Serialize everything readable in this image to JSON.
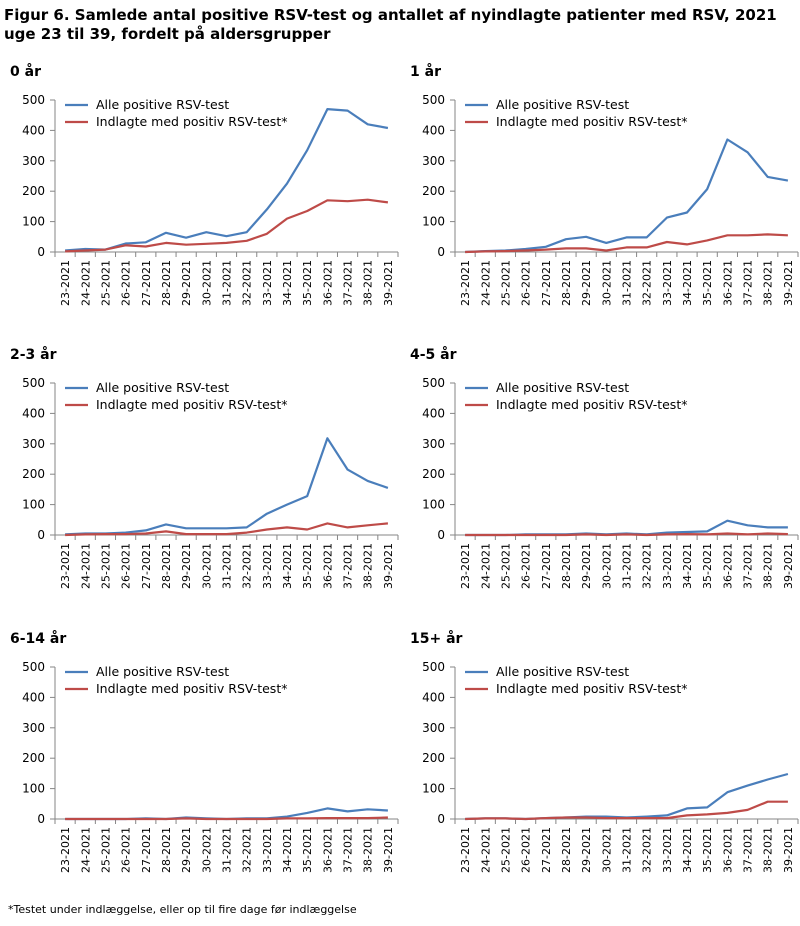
{
  "figure": {
    "title": "Figur 6. Samlede antal positive  RSV-test  og antallet af nyindlagte patienter med RSV, 2021 uge 23 til 39, fordelt på aldersgrupper",
    "footnote": "*Testet under indlæggelse, eller op til fire dage før indlæggelse"
  },
  "colors": {
    "positive": "#4a7ebb",
    "admitted": "#be4b48",
    "axis": "#868686"
  },
  "chart_data": [
    {
      "type": "line",
      "title": "0 år",
      "categories": [
        "23-2021",
        "24-2021",
        "25-2021",
        "26-2021",
        "27-2021",
        "28-2021",
        "29-2021",
        "30-2021",
        "31-2021",
        "32-2021",
        "33-2021",
        "34-2021",
        "35-2021",
        "36-2021",
        "37-2021",
        "38-2021",
        "39-2021"
      ],
      "ylim": [
        0,
        500
      ],
      "yticks": [
        0,
        100,
        200,
        300,
        400,
        500
      ],
      "legend_position": "top-left",
      "series": [
        {
          "name": "Alle positive RSV-test",
          "values": [
            5,
            10,
            8,
            28,
            32,
            63,
            47,
            65,
            52,
            65,
            140,
            225,
            335,
            470,
            465,
            420,
            408
          ]
        },
        {
          "name": "Indlagte med positiv RSV-test*",
          "values": [
            2,
            5,
            8,
            22,
            18,
            30,
            24,
            27,
            30,
            37,
            60,
            110,
            135,
            170,
            167,
            172,
            163
          ]
        }
      ]
    },
    {
      "type": "line",
      "title": "1 år",
      "categories": [
        "23-2021",
        "24-2021",
        "25-2021",
        "26-2021",
        "27-2021",
        "28-2021",
        "29-2021",
        "30-2021",
        "31-2021",
        "32-2021",
        "33-2021",
        "34-2021",
        "35-2021",
        "36-2021",
        "37-2021",
        "38-2021",
        "39-2021"
      ],
      "ylim": [
        0,
        500
      ],
      "yticks": [
        0,
        100,
        200,
        300,
        400,
        500
      ],
      "legend_position": "top-left",
      "series": [
        {
          "name": "Alle positive RSV-test",
          "values": [
            0,
            3,
            5,
            10,
            17,
            42,
            50,
            30,
            48,
            48,
            113,
            130,
            207,
            370,
            328,
            247,
            235
          ]
        },
        {
          "name": "Indlagte med positiv RSV-test*",
          "values": [
            0,
            2,
            3,
            5,
            8,
            12,
            12,
            5,
            15,
            15,
            33,
            25,
            38,
            55,
            55,
            58,
            55
          ]
        }
      ]
    },
    {
      "type": "line",
      "title": "2-3 år",
      "categories": [
        "23-2021",
        "24-2021",
        "25-2021",
        "26-2021",
        "27-2021",
        "28-2021",
        "29-2021",
        "30-2021",
        "31-2021",
        "32-2021",
        "33-2021",
        "34-2021",
        "35-2021",
        "36-2021",
        "37-2021",
        "38-2021",
        "39-2021"
      ],
      "ylim": [
        0,
        500
      ],
      "yticks": [
        0,
        100,
        200,
        300,
        400,
        500
      ],
      "legend_position": "top-left",
      "series": [
        {
          "name": "Alle positive RSV-test",
          "values": [
            2,
            5,
            5,
            8,
            15,
            35,
            22,
            22,
            22,
            25,
            70,
            100,
            128,
            318,
            215,
            178,
            155
          ]
        },
        {
          "name": "Indlagte med positiv RSV-test*",
          "values": [
            0,
            2,
            3,
            3,
            5,
            12,
            3,
            3,
            3,
            8,
            18,
            25,
            18,
            38,
            25,
            32,
            38
          ]
        }
      ]
    },
    {
      "type": "line",
      "title": "4-5 år",
      "categories": [
        "23-2021",
        "24-2021",
        "25-2021",
        "26-2021",
        "27-2021",
        "28-2021",
        "29-2021",
        "30-2021",
        "31-2021",
        "32-2021",
        "33-2021",
        "34-2021",
        "35-2021",
        "36-2021",
        "37-2021",
        "38-2021",
        "39-2021"
      ],
      "ylim": [
        0,
        500
      ],
      "yticks": [
        0,
        100,
        200,
        300,
        400,
        500
      ],
      "legend_position": "top-left",
      "series": [
        {
          "name": "Alle positive RSV-test",
          "values": [
            0,
            0,
            0,
            2,
            2,
            2,
            5,
            2,
            5,
            2,
            8,
            10,
            12,
            47,
            32,
            25,
            25
          ]
        },
        {
          "name": "Indlagte med positiv RSV-test*",
          "values": [
            0,
            0,
            0,
            0,
            0,
            0,
            2,
            0,
            2,
            0,
            2,
            3,
            2,
            5,
            2,
            5,
            3
          ]
        }
      ]
    },
    {
      "type": "line",
      "title": "6-14 år",
      "categories": [
        "23-2021",
        "24-2021",
        "25-2021",
        "26-2021",
        "27-2021",
        "28-2021",
        "29-2021",
        "30-2021",
        "31-2021",
        "32-2021",
        "33-2021",
        "34-2021",
        "35-2021",
        "36-2021",
        "37-2021",
        "38-2021",
        "39-2021"
      ],
      "ylim": [
        0,
        500
      ],
      "yticks": [
        0,
        100,
        200,
        300,
        400,
        500
      ],
      "legend_position": "top-left",
      "series": [
        {
          "name": "Alle positive RSV-test",
          "values": [
            0,
            0,
            0,
            0,
            2,
            0,
            5,
            2,
            0,
            2,
            2,
            8,
            20,
            35,
            25,
            32,
            28
          ]
        },
        {
          "name": "Indlagte med positiv RSV-test*",
          "values": [
            0,
            0,
            0,
            0,
            0,
            0,
            2,
            0,
            0,
            0,
            0,
            2,
            2,
            3,
            3,
            3,
            5
          ]
        }
      ]
    },
    {
      "type": "line",
      "title": "15+ år",
      "categories": [
        "23-2021",
        "24-2021",
        "25-2021",
        "26-2021",
        "27-2021",
        "28-2021",
        "29-2021",
        "30-2021",
        "31-2021",
        "32-2021",
        "33-2021",
        "34-2021",
        "35-2021",
        "36-2021",
        "37-2021",
        "38-2021",
        "39-2021"
      ],
      "ylim": [
        0,
        500
      ],
      "yticks": [
        0,
        100,
        200,
        300,
        400,
        500
      ],
      "legend_position": "top-left",
      "series": [
        {
          "name": "Alle positive RSV-test",
          "values": [
            0,
            2,
            2,
            0,
            3,
            5,
            8,
            8,
            5,
            8,
            12,
            35,
            38,
            88,
            110,
            130,
            148
          ]
        },
        {
          "name": "Indlagte med positiv RSV-test*",
          "values": [
            0,
            2,
            2,
            0,
            3,
            5,
            5,
            3,
            3,
            3,
            3,
            12,
            15,
            20,
            30,
            57,
            57
          ]
        }
      ]
    }
  ]
}
